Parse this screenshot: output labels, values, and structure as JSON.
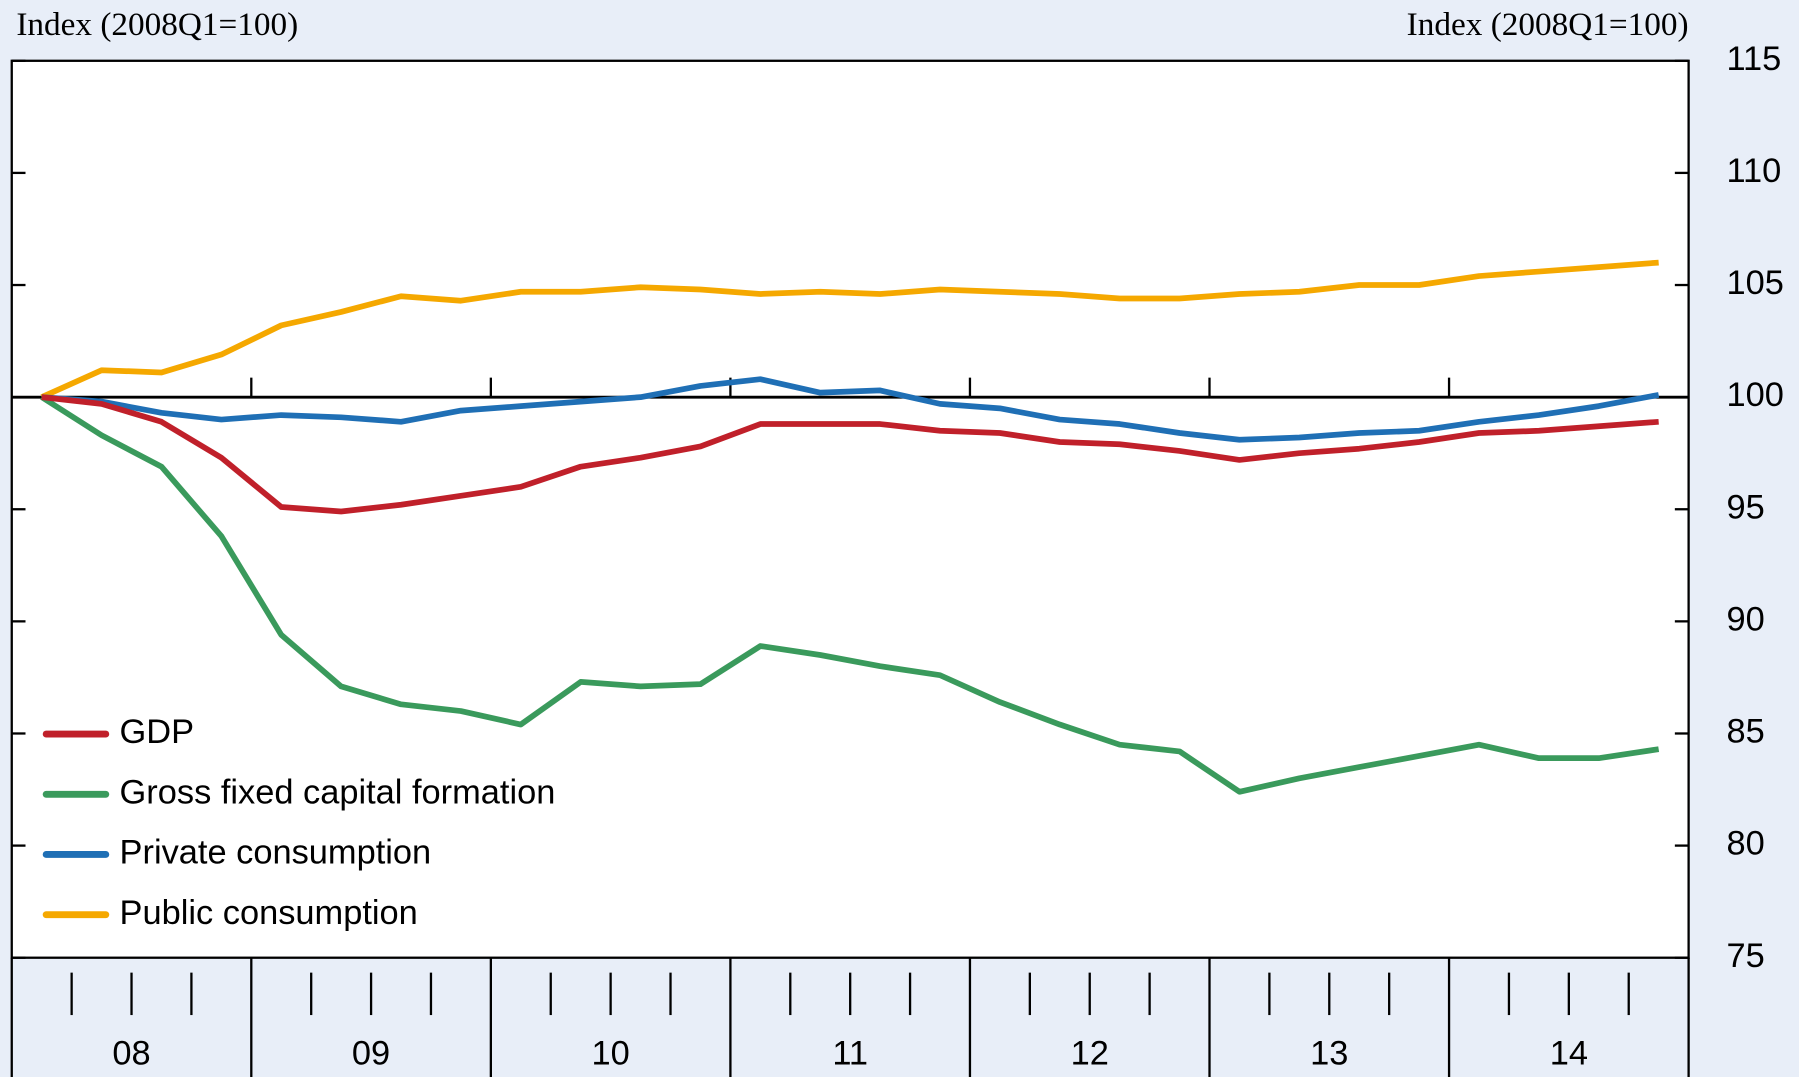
{
  "chart_data": {
    "type": "line",
    "y_axis_label_left": "Index (2008Q1=100)",
    "y_axis_label_right": "Index (2008Q1=100)",
    "categories": [
      "08",
      null,
      null,
      null,
      "09",
      null,
      null,
      null,
      "10",
      null,
      null,
      null,
      "11",
      null,
      null,
      null,
      "12",
      null,
      null,
      null,
      "13",
      null,
      null,
      null,
      "14",
      null,
      null,
      null
    ],
    "ylim": [
      75,
      115
    ],
    "yticks": [
      75,
      80,
      85,
      90,
      95,
      100,
      105,
      110,
      115
    ],
    "reference_line": 100,
    "legend": "lower left",
    "series": [
      {
        "name": "GDP",
        "color": "#c0202a",
        "values": [
          100,
          99.7,
          98.9,
          97.3,
          95.1,
          94.9,
          95.2,
          95.6,
          96.0,
          96.9,
          97.3,
          97.8,
          98.8,
          98.8,
          98.8,
          98.5,
          98.4,
          98.0,
          97.9,
          97.6,
          97.2,
          97.5,
          97.7,
          98.0,
          98.4,
          98.5,
          98.7,
          98.9
        ]
      },
      {
        "name": "Gross fixed capital formation",
        "color": "#3a9a5c",
        "values": [
          100,
          98.3,
          96.9,
          93.8,
          89.4,
          87.1,
          86.3,
          86.0,
          85.4,
          87.3,
          87.1,
          87.2,
          88.9,
          88.5,
          88.0,
          87.6,
          86.4,
          85.4,
          84.5,
          84.2,
          82.4,
          83.0,
          83.5,
          84.0,
          84.5,
          83.9,
          83.9,
          84.3
        ]
      },
      {
        "name": "Private consumption",
        "color": "#1f6fb5",
        "values": [
          100,
          99.8,
          99.3,
          99.0,
          99.2,
          99.1,
          98.9,
          99.4,
          99.6,
          99.8,
          100,
          100.5,
          100.8,
          100.2,
          100.3,
          99.7,
          99.5,
          99.0,
          98.8,
          98.4,
          98.1,
          98.2,
          98.4,
          98.5,
          98.9,
          99.2,
          99.6,
          100.1
        ]
      },
      {
        "name": "Public consumption",
        "color": "#f5a800",
        "values": [
          100,
          101.2,
          101.1,
          101.9,
          103.2,
          103.8,
          104.5,
          104.3,
          104.7,
          104.7,
          104.9,
          104.8,
          104.6,
          104.7,
          104.6,
          104.8,
          104.7,
          104.6,
          104.4,
          104.4,
          104.6,
          104.7,
          105.0,
          105.0,
          105.4,
          105.6,
          105.8,
          106.0
        ]
      }
    ]
  }
}
